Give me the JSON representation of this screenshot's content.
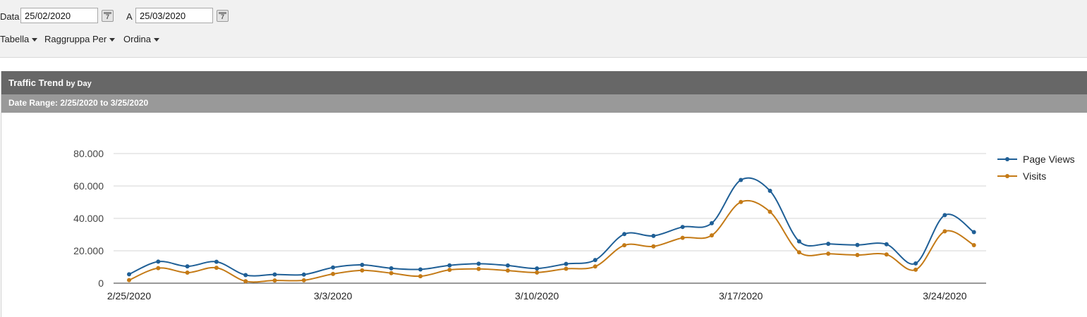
{
  "filters": {
    "from_label": "Data",
    "from_value": "25/02/2020",
    "to_label": "A",
    "to_value": "25/03/2020",
    "calendar_icon_glyph": "7"
  },
  "menus": {
    "table_label": "Tabella",
    "group_label": "Raggruppa Per",
    "sort_label": "Ordina"
  },
  "panel": {
    "title": "Traffic Trend",
    "title_sub": "by Day",
    "range_text": "Date Range: 2/25/2020 to 3/25/2020"
  },
  "chart_data": {
    "type": "line",
    "x": [
      "2/25/2020",
      "2/26/2020",
      "2/27/2020",
      "2/28/2020",
      "2/29/2020",
      "3/1/2020",
      "3/2/2020",
      "3/3/2020",
      "3/4/2020",
      "3/5/2020",
      "3/6/2020",
      "3/7/2020",
      "3/8/2020",
      "3/9/2020",
      "3/10/2020",
      "3/11/2020",
      "3/12/2020",
      "3/13/2020",
      "3/14/2020",
      "3/15/2020",
      "3/16/2020",
      "3/17/2020",
      "3/18/2020",
      "3/19/2020",
      "3/20/2020",
      "3/21/2020",
      "3/22/2020",
      "3/23/2020",
      "3/24/2020",
      "3/25/2020"
    ],
    "x_tick_labels": [
      "2/25/2020",
      "3/3/2020",
      "3/10/2020",
      "3/17/2020",
      "3/24/2020"
    ],
    "y_tick_labels": [
      "0",
      "20.000",
      "40.000",
      "60.000",
      "80.000"
    ],
    "ylim": [
      0,
      80000
    ],
    "grid": true,
    "legend_position": "right",
    "series": [
      {
        "name": "Page Views",
        "color": "#1f5f96",
        "values": [
          5500,
          13300,
          10400,
          13200,
          5000,
          5400,
          5300,
          9700,
          11300,
          9200,
          8500,
          11000,
          12000,
          10900,
          9100,
          11900,
          14300,
          30300,
          29200,
          34700,
          37000,
          63700,
          57000,
          25800,
          24300,
          23600,
          24000,
          12200,
          42000,
          31500
        ]
      },
      {
        "name": "Visits",
        "color": "#c47a16",
        "values": [
          1900,
          9300,
          6500,
          9500,
          1200,
          1700,
          1800,
          5700,
          7900,
          6200,
          4300,
          8200,
          8800,
          7800,
          6600,
          8900,
          10300,
          23400,
          22700,
          28000,
          29500,
          50100,
          44100,
          19100,
          18200,
          17400,
          17700,
          8300,
          32000,
          23500
        ]
      }
    ]
  }
}
